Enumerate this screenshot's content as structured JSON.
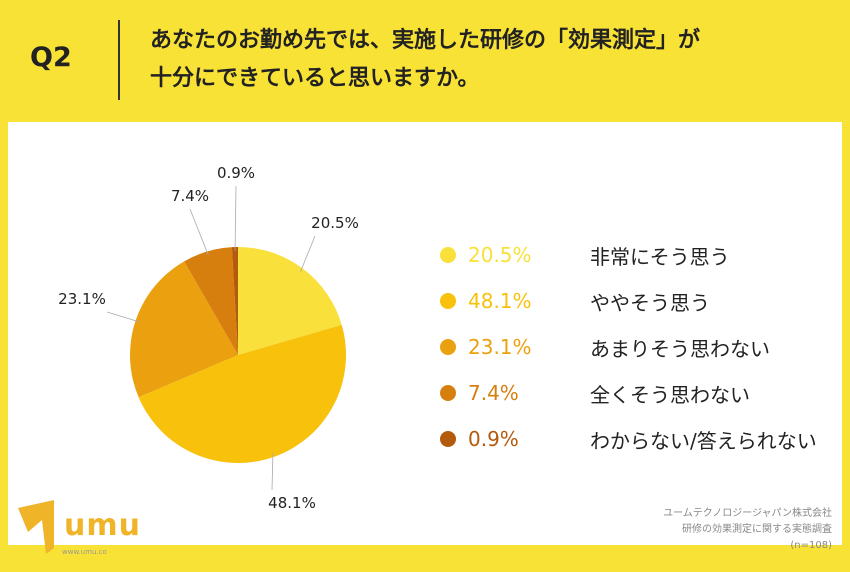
{
  "header": {
    "question": "Q2",
    "title_line1": "あなたのお勤め先では、実施した研修の「効果測定」が",
    "title_line2": "十分にできていると思いますか。"
  },
  "chart_data": {
    "type": "pie",
    "categories": [
      "非常にそう思う",
      "ややそう思う",
      "あまりそう思わない",
      "全くそう思わない",
      "わからない/答えられない"
    ],
    "values": [
      20.5,
      48.1,
      23.1,
      7.4,
      0.9
    ],
    "labels": [
      "20.5%",
      "48.1%",
      "23.1%",
      "7.4%",
      "0.9%"
    ],
    "colors": [
      "#F9E03A",
      "#F7C10C",
      "#EBA10F",
      "#D77F0E",
      "#B45A0C"
    ],
    "start": "top",
    "direction": "clockwise",
    "legend": "right"
  },
  "footer": {
    "company": "ユームテクノロジージャパン株式会社",
    "survey": "研修の効果測定に関する実態調査",
    "n": "(n=108)",
    "logo_text": "umu",
    "logo_url": "www.umu.co"
  }
}
